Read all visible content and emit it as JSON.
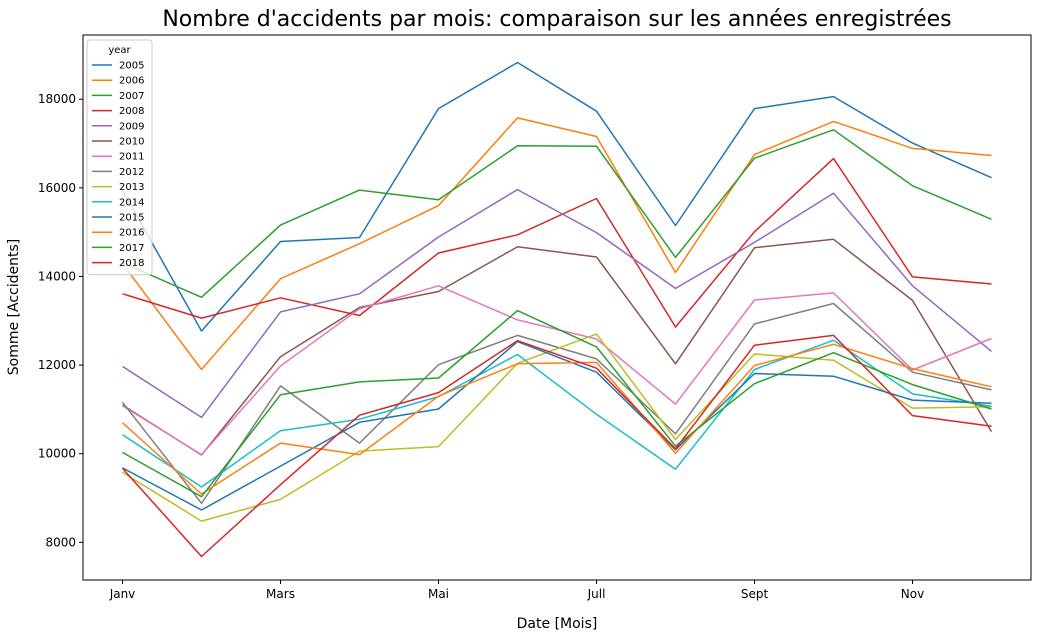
{
  "chart_data": {
    "type": "line",
    "title": "Nombre d'accidents par mois: comparaison sur les années enregistrées",
    "xlabel": "Date [Mois]",
    "ylabel": "Somme [Accidents]",
    "x": [
      1,
      2,
      3,
      4,
      5,
      6,
      7,
      8,
      9,
      10,
      11,
      12
    ],
    "xticks": [
      {
        "x": 1,
        "label": "Janv"
      },
      {
        "x": 3,
        "label": "Mars"
      },
      {
        "x": 5,
        "label": "Mai"
      },
      {
        "x": 7,
        "label": "Jull"
      },
      {
        "x": 9,
        "label": "Sept"
      },
      {
        "x": 11,
        "label": "Nov"
      }
    ],
    "xlim": [
      0.5,
      12.5
    ],
    "ylim": [
      7150,
      19450
    ],
    "yticks": [
      8000,
      10000,
      12000,
      14000,
      16000,
      18000
    ],
    "grid": false,
    "legend": {
      "title": "year",
      "position": "top-left"
    },
    "series": [
      {
        "name": "2005",
        "color": "#1f77b4",
        "values": [
          15950,
          12770,
          14790,
          14880,
          17790,
          18830,
          17730,
          15150,
          17790,
          18060,
          17010,
          16230
        ]
      },
      {
        "name": "2006",
        "color": "#ff7f0e",
        "values": [
          14290,
          11900,
          13950,
          14740,
          15600,
          17580,
          17160,
          14090,
          16750,
          17500,
          16890,
          16730
        ]
      },
      {
        "name": "2007",
        "color": "#2ca02c",
        "values": [
          14310,
          13530,
          15160,
          15950,
          15730,
          16950,
          16940,
          14430,
          16670,
          17310,
          16050,
          15290
        ]
      },
      {
        "name": "2008",
        "color": "#d62728",
        "values": [
          13610,
          13060,
          13520,
          13120,
          14530,
          14940,
          15760,
          12860,
          15010,
          16660,
          13990,
          13830
        ]
      },
      {
        "name": "2009",
        "color": "#9467bd",
        "values": [
          11970,
          10820,
          13200,
          13610,
          14890,
          15960,
          14990,
          13730,
          14770,
          15880,
          13790,
          12310
        ]
      },
      {
        "name": "2010",
        "color": "#8c564b",
        "values": [
          11100,
          9970,
          12190,
          13300,
          13660,
          14670,
          14440,
          12030,
          14650,
          14840,
          13460,
          10500
        ]
      },
      {
        "name": "2011",
        "color": "#e377c2",
        "values": [
          11080,
          9980,
          11980,
          13270,
          13790,
          13020,
          12590,
          11120,
          13470,
          13630,
          11890,
          12600
        ]
      },
      {
        "name": "2012",
        "color": "#7f7f7f",
        "values": [
          11160,
          8880,
          11530,
          10240,
          12010,
          12670,
          12140,
          10450,
          12930,
          13390,
          11840,
          11440
        ]
      },
      {
        "name": "2013",
        "color": "#bcbd22",
        "values": [
          9580,
          8480,
          8970,
          10060,
          10160,
          12040,
          12700,
          10320,
          12250,
          12110,
          11030,
          11060
        ]
      },
      {
        "name": "2014",
        "color": "#17becf",
        "values": [
          10430,
          9250,
          10520,
          10780,
          11290,
          12240,
          10890,
          9650,
          11900,
          12560,
          11350,
          11070
        ]
      },
      {
        "name": "2015",
        "color": "#1f77b4",
        "values": [
          9680,
          8730,
          9720,
          10710,
          11010,
          12530,
          11840,
          10090,
          11810,
          11750,
          11210,
          11140
        ]
      },
      {
        "name": "2016",
        "color": "#ff7f0e",
        "values": [
          10700,
          9090,
          10240,
          9980,
          11300,
          12030,
          12060,
          10010,
          11990,
          12470,
          11920,
          11510
        ]
      },
      {
        "name": "2017",
        "color": "#2ca02c",
        "values": [
          10030,
          9030,
          11330,
          11620,
          11710,
          13230,
          12410,
          10170,
          11580,
          12280,
          11560,
          11010
        ]
      },
      {
        "name": "2018",
        "color": "#d62728",
        "values": [
          9670,
          7680,
          9300,
          10870,
          11380,
          12550,
          11930,
          10110,
          12450,
          12670,
          10860,
          10620
        ]
      }
    ]
  }
}
